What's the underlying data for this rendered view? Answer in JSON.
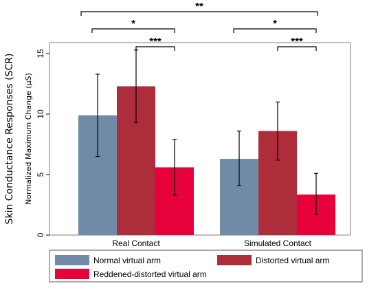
{
  "chart_data": {
    "type": "bar",
    "ylabel": "Skin Conductance Responses (SCR)",
    "ysublabel": "Normalized Maximum Change (μS)",
    "ylim": [
      0,
      16
    ],
    "yticks": [
      0,
      5,
      10,
      15
    ],
    "categories": [
      "Real Contact",
      "Simulated Contact"
    ],
    "series": [
      {
        "name": "Normal virtual arm",
        "color": "#6f8ba5",
        "values": [
          9.9,
          6.3
        ],
        "error_low": [
          6.5,
          4.1
        ],
        "error_high": [
          13.3,
          8.6
        ]
      },
      {
        "name": "Distorted virtual arm",
        "color": "#ad2d3a",
        "values": [
          12.3,
          8.6
        ],
        "error_low": [
          9.3,
          6.2
        ],
        "error_high": [
          15.3,
          11.0
        ]
      },
      {
        "name": "Reddened-distorted virtual arm",
        "color": "#e8003a",
        "values": [
          5.6,
          3.35
        ],
        "error_low": [
          3.3,
          1.7
        ],
        "error_high": [
          7.9,
          5.1
        ]
      }
    ],
    "significance": [
      {
        "label": "**",
        "from": "Real Contact/Normal virtual arm",
        "to": "Simulated Contact/Reddened-distorted virtual arm"
      },
      {
        "label": "*",
        "from": "Real Contact/Normal virtual arm",
        "to": "Real Contact/Reddened-distorted virtual arm"
      },
      {
        "label": "*",
        "from": "Simulated Contact/Normal virtual arm",
        "to": "Simulated Contact/Reddened-distorted virtual arm"
      },
      {
        "label": "***",
        "from": "Real Contact/Distorted virtual arm",
        "to": "Real Contact/Reddened-distorted virtual arm"
      },
      {
        "label": "***",
        "from": "Simulated Contact/Distorted virtual arm",
        "to": "Simulated Contact/Reddened-distorted virtual arm"
      }
    ],
    "legend_position": "bottom",
    "grid": false
  }
}
